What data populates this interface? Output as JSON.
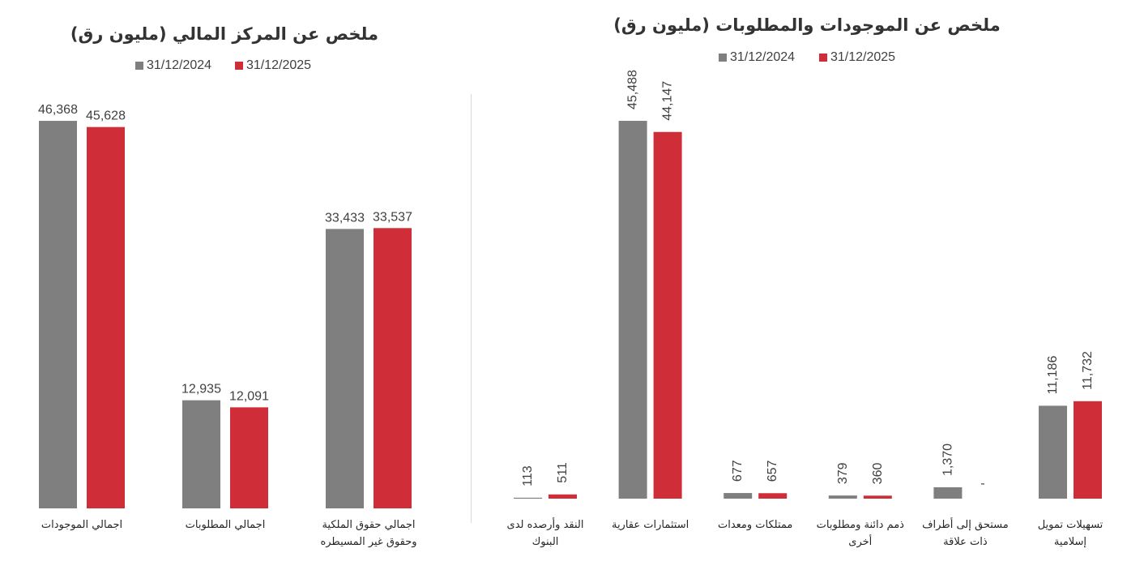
{
  "chart_data": [
    {
      "type": "bar",
      "title": "ملخص عن المركز المالي (مليون رق)",
      "categories": [
        "اجمالي الموجودات",
        "اجمالي المطلوبات",
        "اجمالي حقوق الملكية\nوحقوق غير المسيطره"
      ],
      "series": [
        {
          "name": "31/12/2024",
          "color": "#7f7f7f",
          "values": [
            46368,
            12935,
            33433
          ],
          "data_labels": [
            "46,368",
            "12,935",
            "33,433"
          ]
        },
        {
          "name": "31/12/2025",
          "color": "#cf2e39",
          "values": [
            45628,
            12091,
            33537
          ],
          "data_labels": [
            "45,628",
            "12,091",
            "33,537"
          ]
        }
      ],
      "ylim": [
        0,
        50000
      ],
      "legend": "top",
      "grid": false
    },
    {
      "type": "bar",
      "title": "ملخص عن الموجودات والمطلوبات (مليون رق)",
      "categories": [
        "النقد وأرصده لدى\nالبنوك",
        "استثمارات عقارية",
        "ممتلكات ومعدات",
        "ذمم دائنة ومطلوبات\nأخرى",
        "مستحق إلى أطراف\nذات علاقة",
        "تسهيلات تمويل\nإسلامية"
      ],
      "series": [
        {
          "name": "31/12/2024",
          "color": "#7f7f7f",
          "values": [
            113,
            45488,
            677,
            379,
            1370,
            11186
          ],
          "data_labels": [
            "113",
            "45,488",
            "677",
            "379",
            "1,370",
            "11,186"
          ]
        },
        {
          "name": "31/12/2025",
          "color": "#cf2e39",
          "values": [
            511,
            44147,
            657,
            360,
            null,
            11732
          ],
          "data_labels": [
            "511",
            "44,147",
            "657",
            "360",
            "-",
            "11,732"
          ]
        }
      ],
      "ylim": [
        0,
        50000
      ],
      "legend": "top",
      "grid": false
    }
  ]
}
